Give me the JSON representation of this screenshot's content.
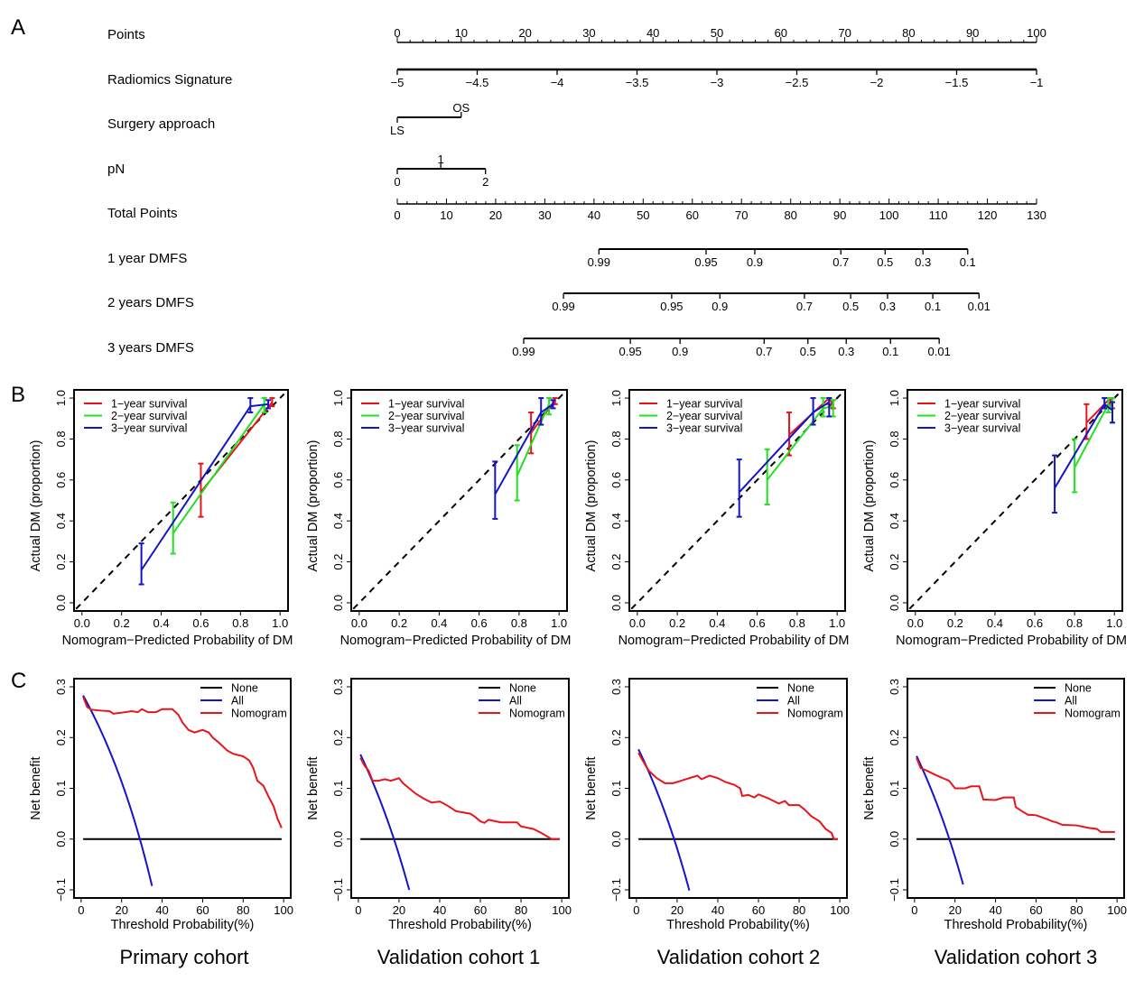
{
  "panel_labels": {
    "a": "A",
    "b": "B",
    "c": "C"
  },
  "cohort_captions": [
    "Primary cohort",
    "Validation cohort 1",
    "Validation cohort 2",
    "Validation cohort 3"
  ],
  "chart_data": [
    {
      "type": "nomogram",
      "panel": "A",
      "rows": [
        {
          "label": "Points",
          "kind": "points",
          "min": 0,
          "max": 100,
          "major_step": 10,
          "minor_step": 2,
          "tick_labels": [
            "0",
            "10",
            "20",
            "30",
            "40",
            "50",
            "60",
            "70",
            "80",
            "90",
            "100"
          ]
        },
        {
          "label": "Radiomics Signature",
          "kind": "variable",
          "ticks": [
            {
              "label": "−5",
              "points": 0
            },
            {
              "label": "−4.5",
              "points": 12.5
            },
            {
              "label": "−4",
              "points": 25
            },
            {
              "label": "−3.5",
              "points": 37.5
            },
            {
              "label": "−3",
              "points": 50
            },
            {
              "label": "−2.5",
              "points": 62.5
            },
            {
              "label": "−2",
              "points": 75
            },
            {
              "label": "−1.5",
              "points": 87.5
            },
            {
              "label": "−1",
              "points": 100
            }
          ]
        },
        {
          "label": "Surgery approach",
          "kind": "variable",
          "ticks": [
            {
              "label": "LS",
              "points": 0,
              "side": "below"
            },
            {
              "label": "OS",
              "points": 10,
              "side": "above"
            }
          ]
        },
        {
          "label": "pN",
          "kind": "variable",
          "ticks": [
            {
              "label": "0",
              "points": 0,
              "side": "below"
            },
            {
              "label": "1",
              "points": 6.8,
              "side": "above"
            },
            {
              "label": "2",
              "points": 13.8,
              "side": "below"
            }
          ]
        },
        {
          "label": "Total Points",
          "kind": "total",
          "min": 0,
          "max": 130,
          "major_step": 10,
          "minor_step": 2,
          "tick_labels": [
            "0",
            "10",
            "20",
            "30",
            "40",
            "50",
            "60",
            "70",
            "80",
            "90",
            "100",
            "110",
            "120",
            "130"
          ]
        },
        {
          "label": "1 year DMFS",
          "kind": "outcome",
          "ticks": [
            {
              "label": "0.99",
              "total": 41
            },
            {
              "label": "0.95",
              "total": 62.8
            },
            {
              "label": "0.9",
              "total": 72.7
            },
            {
              "label": "0.7",
              "total": 90.2
            },
            {
              "label": "0.5",
              "total": 99.2
            },
            {
              "label": "0.3",
              "total": 106.9
            },
            {
              "label": "0.1",
              "total": 116
            }
          ]
        },
        {
          "label": "2 years DMFS",
          "kind": "outcome",
          "ticks": [
            {
              "label": "0.99",
              "total": 33.8
            },
            {
              "label": "0.95",
              "total": 55.8
            },
            {
              "label": "0.9",
              "total": 65.6
            },
            {
              "label": "0.7",
              "total": 82.8
            },
            {
              "label": "0.5",
              "total": 92.2
            },
            {
              "label": "0.3",
              "total": 99.7
            },
            {
              "label": "0.1",
              "total": 108.9
            },
            {
              "label": "0.01",
              "total": 118.3
            }
          ]
        },
        {
          "label": "3 years DMFS",
          "kind": "outcome",
          "ticks": [
            {
              "label": "0.99",
              "total": 25.7
            },
            {
              "label": "0.95",
              "total": 47.4
            },
            {
              "label": "0.9",
              "total": 57.5
            },
            {
              "label": "0.7",
              "total": 74.6
            },
            {
              "label": "0.5",
              "total": 83.5
            },
            {
              "label": "0.3",
              "total": 91.3
            },
            {
              "label": "0.1",
              "total": 100.3
            },
            {
              "label": "0.01",
              "total": 110.2
            }
          ]
        }
      ]
    },
    {
      "type": "calibration",
      "panel": "B",
      "xlabel": "Nomogram−Predicted Probability of DM",
      "ylabel": "Actual DM (proportion)",
      "xlim": [
        0,
        1
      ],
      "ylim": [
        0,
        1
      ],
      "xticks": [
        "0.0",
        "0.2",
        "0.4",
        "0.6",
        "0.8",
        "1.0"
      ],
      "yticks": [
        "0.0",
        "0.2",
        "0.4",
        "0.6",
        "0.8",
        "1.0"
      ],
      "legend": {
        "position": "top-left",
        "entries": [
          {
            "name": "1−year survival",
            "color": "#e8141c"
          },
          {
            "name": "2−year survival",
            "color": "#22e022"
          },
          {
            "name": "3−year survival",
            "color": "#1414c8"
          }
        ]
      },
      "reference_line": "diagonal-dashed",
      "cohorts": [
        {
          "cohort": "Primary cohort",
          "series": [
            {
              "name": "1−year survival",
              "points": [
                {
                  "x": 0.6,
                  "y": 0.54,
                  "lo": 0.42,
                  "hi": 0.68
                },
                {
                  "x": 0.96,
                  "y": 0.98,
                  "lo": 0.96,
                  "hi": 1.0
                }
              ]
            },
            {
              "name": "2−year survival",
              "points": [
                {
                  "x": 0.46,
                  "y": 0.34,
                  "lo": 0.24,
                  "hi": 0.49
                },
                {
                  "x": 0.92,
                  "y": 0.97,
                  "lo": 0.93,
                  "hi": 1.0
                }
              ]
            },
            {
              "name": "3−year survival",
              "points": [
                {
                  "x": 0.3,
                  "y": 0.16,
                  "lo": 0.09,
                  "hi": 0.29
                },
                {
                  "x": 0.85,
                  "y": 0.96,
                  "lo": 0.93,
                  "hi": 1.0
                },
                {
                  "x": 0.94,
                  "y": 0.97,
                  "lo": 0.95,
                  "hi": 0.99
                }
              ]
            }
          ]
        },
        {
          "cohort": "Validation cohort 1",
          "series": [
            {
              "name": "1−year survival",
              "points": [
                {
                  "x": 0.86,
                  "y": 0.83,
                  "lo": 0.73,
                  "hi": 0.93
                },
                {
                  "x": 0.98,
                  "y": 0.99,
                  "lo": 0.97,
                  "hi": 1.0
                }
              ]
            },
            {
              "name": "2−year survival",
              "points": [
                {
                  "x": 0.79,
                  "y": 0.62,
                  "lo": 0.5,
                  "hi": 0.77
                },
                {
                  "x": 0.95,
                  "y": 0.97,
                  "lo": 0.92,
                  "hi": 1.0
                }
              ]
            },
            {
              "name": "3−year survival",
              "points": [
                {
                  "x": 0.68,
                  "y": 0.53,
                  "lo": 0.41,
                  "hi": 0.69
                },
                {
                  "x": 0.91,
                  "y": 0.93,
                  "lo": 0.87,
                  "hi": 1.0
                },
                {
                  "x": 0.97,
                  "y": 0.97,
                  "lo": 0.95,
                  "hi": 0.99
                }
              ]
            }
          ]
        },
        {
          "cohort": "Validation cohort 2",
          "series": [
            {
              "name": "1−year survival",
              "points": [
                {
                  "x": 0.76,
                  "y": 0.82,
                  "lo": 0.72,
                  "hi": 0.93
                },
                {
                  "x": 0.96,
                  "y": 1.0,
                  "lo": 0.97,
                  "hi": 1.0
                },
                {
                  "x": 0.98,
                  "y": 0.97,
                  "lo": 0.95,
                  "hi": 0.99
                }
              ]
            },
            {
              "name": "2−year survival",
              "points": [
                {
                  "x": 0.65,
                  "y": 0.6,
                  "lo": 0.48,
                  "hi": 0.75
                },
                {
                  "x": 0.93,
                  "y": 0.95,
                  "lo": 0.91,
                  "hi": 1.0
                },
                {
                  "x": 0.98,
                  "y": 0.96,
                  "lo": 0.91,
                  "hi": 0.99
                }
              ]
            },
            {
              "name": "3−year survival",
              "points": [
                {
                  "x": 0.51,
                  "y": 0.54,
                  "lo": 0.42,
                  "hi": 0.7
                },
                {
                  "x": 0.88,
                  "y": 0.93,
                  "lo": 0.87,
                  "hi": 1.0
                },
                {
                  "x": 0.96,
                  "y": 0.98,
                  "lo": 0.91,
                  "hi": 1.0
                }
              ]
            }
          ]
        },
        {
          "cohort": "Validation cohort 3",
          "series": [
            {
              "name": "1−year survival",
              "points": [
                {
                  "x": 0.86,
                  "y": 0.88,
                  "lo": 0.8,
                  "hi": 0.97
                },
                {
                  "x": 0.98,
                  "y": 1.0,
                  "lo": 0.95,
                  "hi": 1.0
                },
                {
                  "x": 0.99,
                  "y": 0.98,
                  "lo": 0.95,
                  "hi": 1.0
                }
              ]
            },
            {
              "name": "2−year survival",
              "points": [
                {
                  "x": 0.8,
                  "y": 0.66,
                  "lo": 0.54,
                  "hi": 0.8
                },
                {
                  "x": 0.97,
                  "y": 0.97,
                  "lo": 0.93,
                  "hi": 1.0
                },
                {
                  "x": 0.99,
                  "y": 0.95,
                  "lo": 0.88,
                  "hi": 1.0
                }
              ]
            },
            {
              "name": "3−year survival",
              "points": [
                {
                  "x": 0.7,
                  "y": 0.56,
                  "lo": 0.44,
                  "hi": 0.72
                },
                {
                  "x": 0.95,
                  "y": 0.97,
                  "lo": 0.95,
                  "hi": 1.0
                },
                {
                  "x": 0.99,
                  "y": 0.94,
                  "lo": 0.88,
                  "hi": 0.98
                }
              ]
            }
          ]
        }
      ]
    },
    {
      "type": "line",
      "panel": "C",
      "xlabel": "Threshold Probability(%)",
      "ylabel": "Net benefit",
      "xlim": [
        0,
        100
      ],
      "ylim": [
        -0.1,
        0.3
      ],
      "xticks": [
        "0",
        "20",
        "40",
        "60",
        "80",
        "100"
      ],
      "yticks": [
        "−0.1",
        "0.0",
        "0.1",
        "0.2",
        "0.3"
      ],
      "legend": {
        "position": "top-right",
        "entries": [
          {
            "name": "None",
            "color": "#000000"
          },
          {
            "name": "All",
            "color": "#1414c8"
          },
          {
            "name": "Nomogram",
            "color": "#e8141c"
          }
        ]
      },
      "cohorts": [
        {
          "cohort": "Primary cohort",
          "none": {
            "x": [
              1,
              99
            ],
            "y": [
              0,
              0
            ]
          },
          "all": {
            "prevalence": 0.29,
            "x_end": 35
          },
          "nomogram": {
            "x": [
              1,
              3,
              5,
              10,
              14,
              16,
              20,
              25,
              28,
              30,
              33,
              37,
              40,
              45,
              48,
              50,
              53,
              56,
              60,
              63,
              65,
              68,
              72,
              75,
              80,
              83,
              85,
              87,
              90,
              93,
              95,
              97,
              99
            ],
            "y": [
              0.28,
              0.26,
              0.255,
              0.253,
              0.252,
              0.247,
              0.249,
              0.252,
              0.25,
              0.256,
              0.25,
              0.25,
              0.256,
              0.256,
              0.245,
              0.23,
              0.215,
              0.21,
              0.215,
              0.21,
              0.2,
              0.19,
              0.175,
              0.168,
              0.163,
              0.155,
              0.14,
              0.115,
              0.105,
              0.08,
              0.065,
              0.04,
              0.022
            ]
          }
        },
        {
          "cohort": "Validation cohort 1",
          "none": {
            "x": [
              1,
              99
            ],
            "y": [
              0,
              0
            ]
          },
          "all": {
            "prevalence": 0.175,
            "x_end": 25
          },
          "nomogram": {
            "x": [
              1,
              3,
              5,
              7,
              10,
              13,
              16,
              20,
              22,
              25,
              28,
              32,
              36,
              40,
              42,
              45,
              48,
              55,
              57,
              60,
              62,
              64,
              70,
              78,
              80,
              86,
              90,
              93,
              95,
              99
            ],
            "y": [
              0.16,
              0.145,
              0.135,
              0.115,
              0.115,
              0.118,
              0.115,
              0.12,
              0.11,
              0.1,
              0.09,
              0.08,
              0.072,
              0.074,
              0.07,
              0.063,
              0.055,
              0.05,
              0.045,
              0.035,
              0.032,
              0.038,
              0.033,
              0.033,
              0.025,
              0.02,
              0.012,
              0.005,
              0.0,
              0.0
            ]
          }
        },
        {
          "cohort": "Validation cohort 2",
          "none": {
            "x": [
              1,
              99
            ],
            "y": [
              0,
              0
            ]
          },
          "all": {
            "prevalence": 0.185,
            "x_end": 26
          },
          "nomogram": {
            "x": [
              1,
              3,
              6,
              10,
              14,
              18,
              22,
              26,
              30,
              32,
              36,
              40,
              44,
              48,
              51,
              52,
              55,
              58,
              60,
              65,
              70,
              73,
              75,
              80,
              83,
              86,
              90,
              93,
              96,
              97,
              99
            ],
            "y": [
              0.17,
              0.155,
              0.135,
              0.12,
              0.11,
              0.11,
              0.115,
              0.12,
              0.125,
              0.118,
              0.125,
              0.12,
              0.112,
              0.107,
              0.1,
              0.085,
              0.087,
              0.082,
              0.088,
              0.08,
              0.07,
              0.075,
              0.067,
              0.067,
              0.057,
              0.045,
              0.035,
              0.02,
              0.012,
              0.0,
              0.0
            ]
          }
        },
        {
          "cohort": "Validation cohort 3",
          "none": {
            "x": [
              1,
              99
            ],
            "y": [
              0,
              0
            ]
          },
          "all": {
            "prevalence": 0.172,
            "x_end": 24
          },
          "nomogram": {
            "x": [
              1,
              3,
              6,
              10,
              14,
              17,
              20,
              25,
              28,
              32,
              34,
              40,
              44,
              49,
              50,
              53,
              56,
              60,
              65,
              68,
              70,
              73,
              80,
              86,
              90,
              92,
              99
            ],
            "y": [
              0.16,
              0.14,
              0.135,
              0.127,
              0.12,
              0.115,
              0.1,
              0.1,
              0.104,
              0.104,
              0.078,
              0.077,
              0.082,
              0.082,
              0.063,
              0.055,
              0.048,
              0.047,
              0.04,
              0.035,
              0.033,
              0.028,
              0.027,
              0.022,
              0.02,
              0.014,
              0.014
            ]
          }
        }
      ]
    }
  ]
}
